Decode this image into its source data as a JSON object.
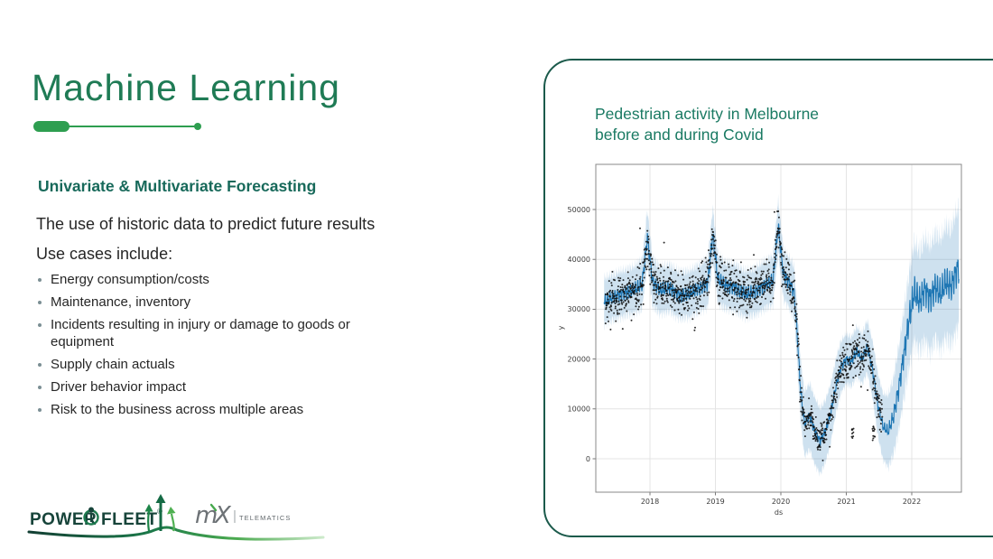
{
  "slide": {
    "title": "Machine Learning",
    "section_heading": "Univariate & Multivariate Forecasting",
    "intro": "The use of historic data to predict future results",
    "use_cases_label": "Use cases include:",
    "bullets": [
      "Energy consumption/costs",
      "Maintenance, inventory",
      "Incidents resulting in injury or damage to goods or equipment",
      "Supply chain actuals",
      "Driver behavior impact",
      "Risk to the business across multiple areas"
    ]
  },
  "panel": {
    "title_line1": "Pedestrian activity in Melbourne",
    "title_line2": "before and during Covid"
  },
  "logo": {
    "power_label": "POWER",
    "fleet_label": "FLEET",
    "reg_mark": "®",
    "mix_m": "m",
    "mix_x": "X",
    "telematics_label": "TELEMATICS",
    "person_icon": "powerfleet-person-emblem",
    "arrows_icon": "three-up-arrows"
  },
  "colors": {
    "accent_green": "#2E9E50",
    "title_green": "#1F7B55",
    "heading_teal": "#17695A",
    "panel_border": "#1B5A4B",
    "panel_title_green": "#1A7A63",
    "logo_dark_green": "#17443A",
    "logo_light_green": "#46A84D",
    "logo_gray": "#6D7276",
    "forecast_blue": "#1f77b4",
    "band_blue": "rgba(31,119,180,0.22)",
    "dot_black": "#111111",
    "grid_gray": "#e4e4e4",
    "frame_gray": "#8a8a8a"
  },
  "chart_data": {
    "type": "line",
    "title": "Pedestrian activity in Melbourne before and during Covid",
    "xlabel": "ds",
    "ylabel": "y",
    "xlim": [
      2017.17,
      2022.76
    ],
    "ylim": [
      -6700,
      59000
    ],
    "x_ticks": [
      "2018",
      "2019",
      "2020",
      "2021",
      "2022"
    ],
    "x_tick_values": [
      2018,
      2019,
      2020,
      2021,
      2022
    ],
    "y_ticks": [
      "0",
      "10000",
      "20000",
      "30000",
      "40000",
      "50000"
    ],
    "y_tick_values": [
      0,
      10000,
      20000,
      30000,
      40000,
      50000
    ],
    "grid": true,
    "legend": "none",
    "series": [
      {
        "name": "forecast_yhat",
        "style": "line",
        "x": [
          2017.3,
          2017.45,
          2017.6,
          2017.75,
          2017.88,
          2017.96,
          2018.04,
          2018.15,
          2018.3,
          2018.45,
          2018.6,
          2018.75,
          2018.88,
          2018.96,
          2019.04,
          2019.15,
          2019.3,
          2019.45,
          2019.6,
          2019.75,
          2019.88,
          2019.96,
          2020.04,
          2020.12,
          2020.2,
          2020.24,
          2020.3,
          2020.36,
          2020.44,
          2020.52,
          2020.6,
          2020.68,
          2020.76,
          2020.84,
          2020.92,
          2021.0,
          2021.08,
          2021.16,
          2021.24,
          2021.32,
          2021.4,
          2021.48,
          2021.56,
          2021.64,
          2021.72,
          2021.8,
          2021.88,
          2021.96,
          2022.04,
          2022.12,
          2022.2,
          2022.28,
          2022.36,
          2022.44,
          2022.52,
          2022.6,
          2022.68,
          2022.72
        ],
        "y": [
          31500,
          32500,
          33200,
          33800,
          35000,
          44500,
          35500,
          33800,
          34200,
          32800,
          33000,
          34200,
          35200,
          45000,
          36000,
          34800,
          34300,
          33000,
          33500,
          34800,
          35800,
          46500,
          37000,
          35500,
          33500,
          27000,
          14000,
          7000,
          8500,
          5500,
          3500,
          5500,
          9000,
          14500,
          18500,
          20000,
          19500,
          21500,
          20000,
          22500,
          18000,
          11000,
          6500,
          5500,
          8500,
          14000,
          21000,
          28000,
          33500,
          31500,
          34000,
          32000,
          34500,
          33000,
          35500,
          34500,
          37500,
          38500
        ]
      },
      {
        "name": "uncertainty_band_half_width",
        "style": "band",
        "half_width": [
          3600,
          3600,
          3600,
          3700,
          3900,
          4300,
          3900,
          3700,
          3700,
          3700,
          3700,
          3700,
          3900,
          4300,
          3900,
          3700,
          3700,
          3700,
          3700,
          3800,
          3900,
          4300,
          4000,
          4000,
          4300,
          4800,
          5400,
          5800,
          6000,
          6000,
          5900,
          5600,
          5200,
          4800,
          4500,
          4300,
          4300,
          4300,
          4400,
          4600,
          5000,
          5600,
          6000,
          6300,
          6500,
          6800,
          7000,
          7300,
          7600,
          7900,
          8100,
          8400,
          8600,
          8900,
          9100,
          9400,
          9600,
          9700
        ]
      },
      {
        "name": "observed_points",
        "style": "scatter",
        "t_range": [
          2017.32,
          2021.55
        ],
        "step": 0.0031,
        "sigma": 2050,
        "sigma_low": 1400,
        "outlier_clusters": [
          {
            "t": 2021.1,
            "spread": 0.018,
            "y_min": 3800,
            "y_max": 6300,
            "n": 9
          },
          {
            "t": 2021.42,
            "spread": 0.022,
            "y_min": 3600,
            "y_max": 6500,
            "n": 12
          }
        ]
      }
    ]
  }
}
